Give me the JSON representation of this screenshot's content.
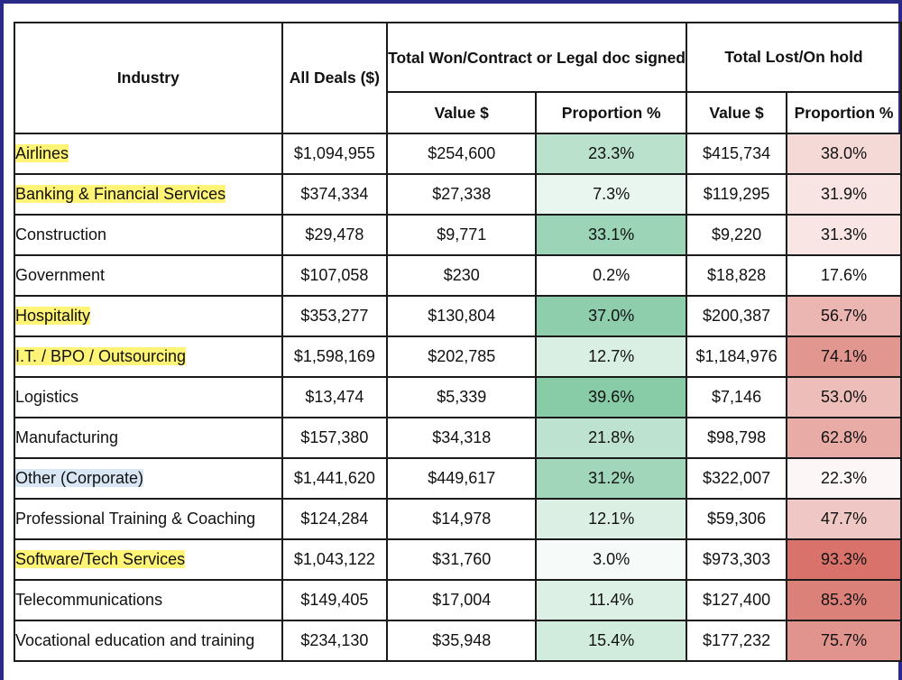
{
  "table": {
    "headers": {
      "industry": "Industry",
      "all_deals": "All Deals ($)",
      "won_group": "Total Won/Contract or Legal doc signed",
      "lost_group": "Total Lost/On hold",
      "won_value": "Value $",
      "won_proportion": "Proportion %",
      "lost_value": "Value $",
      "lost_proportion": "Proportion %"
    },
    "rows": [
      {
        "industry": "Airlines",
        "highlight": "#fff476",
        "all_deals": "$1,094,955",
        "won_value": "$254,600",
        "won_pct": "23.3%",
        "lost_value": "$415,734",
        "lost_pct": "38.0%"
      },
      {
        "industry": "Banking & Financial Services",
        "highlight": "#fff476",
        "all_deals": "$374,334",
        "won_value": "$27,338",
        "won_pct": "7.3%",
        "lost_value": "$119,295",
        "lost_pct": "31.9%"
      },
      {
        "industry": "Construction",
        "highlight": "",
        "all_deals": "$29,478",
        "won_value": "$9,771",
        "won_pct": "33.1%",
        "lost_value": "$9,220",
        "lost_pct": "31.3%"
      },
      {
        "industry": "Government",
        "highlight": "",
        "all_deals": "$107,058",
        "won_value": "$230",
        "won_pct": "0.2%",
        "lost_value": "$18,828",
        "lost_pct": "17.6%"
      },
      {
        "industry": "Hospitality",
        "highlight": "#fff476",
        "all_deals": "$353,277",
        "won_value": "$130,804",
        "won_pct": "37.0%",
        "lost_value": "$200,387",
        "lost_pct": "56.7%"
      },
      {
        "industry": "I.T. / BPO / Outsourcing",
        "highlight": "#fff476",
        "all_deals": "$1,598,169",
        "won_value": "$202,785",
        "won_pct": "12.7%",
        "lost_value": "$1,184,976",
        "lost_pct": "74.1%"
      },
      {
        "industry": "Logistics",
        "highlight": "",
        "all_deals": "$13,474",
        "won_value": "$5,339",
        "won_pct": "39.6%",
        "lost_value": "$7,146",
        "lost_pct": "53.0%"
      },
      {
        "industry": "Manufacturing",
        "highlight": "",
        "all_deals": "$157,380",
        "won_value": "$34,318",
        "won_pct": "21.8%",
        "lost_value": "$98,798",
        "lost_pct": "62.8%"
      },
      {
        "industry": "Other (Corporate)",
        "highlight": "#d9e7f5",
        "all_deals": "$1,441,620",
        "won_value": "$449,617",
        "won_pct": "31.2%",
        "lost_value": "$322,007",
        "lost_pct": "22.3%"
      },
      {
        "industry": "Professional Training & Coaching",
        "highlight": "",
        "all_deals": "$124,284",
        "won_value": "$14,978",
        "won_pct": "12.1%",
        "lost_value": "$59,306",
        "lost_pct": "47.7%"
      },
      {
        "industry": "Software/Tech Services",
        "highlight": "#fff476",
        "all_deals": "$1,043,122",
        "won_value": "$31,760",
        "won_pct": "3.0%",
        "lost_value": "$973,303",
        "lost_pct": "93.3%"
      },
      {
        "industry": "Telecommunications",
        "highlight": "",
        "all_deals": "$149,405",
        "won_value": "$17,004",
        "won_pct": "11.4%",
        "lost_value": "$127,400",
        "lost_pct": "85.3%"
      },
      {
        "industry": "Vocational education and training",
        "highlight": "",
        "all_deals": "$234,130",
        "won_value": "$35,948",
        "won_pct": "15.4%",
        "lost_value": "$177,232",
        "lost_pct": "75.7%"
      }
    ]
  },
  "colors": {
    "frame": "#2a2b86",
    "won_scale_max": "#87cba7",
    "lost_scale_max": "#d8726a",
    "highlight_yellow": "#fff476",
    "highlight_blue": "#d9e7f5"
  }
}
